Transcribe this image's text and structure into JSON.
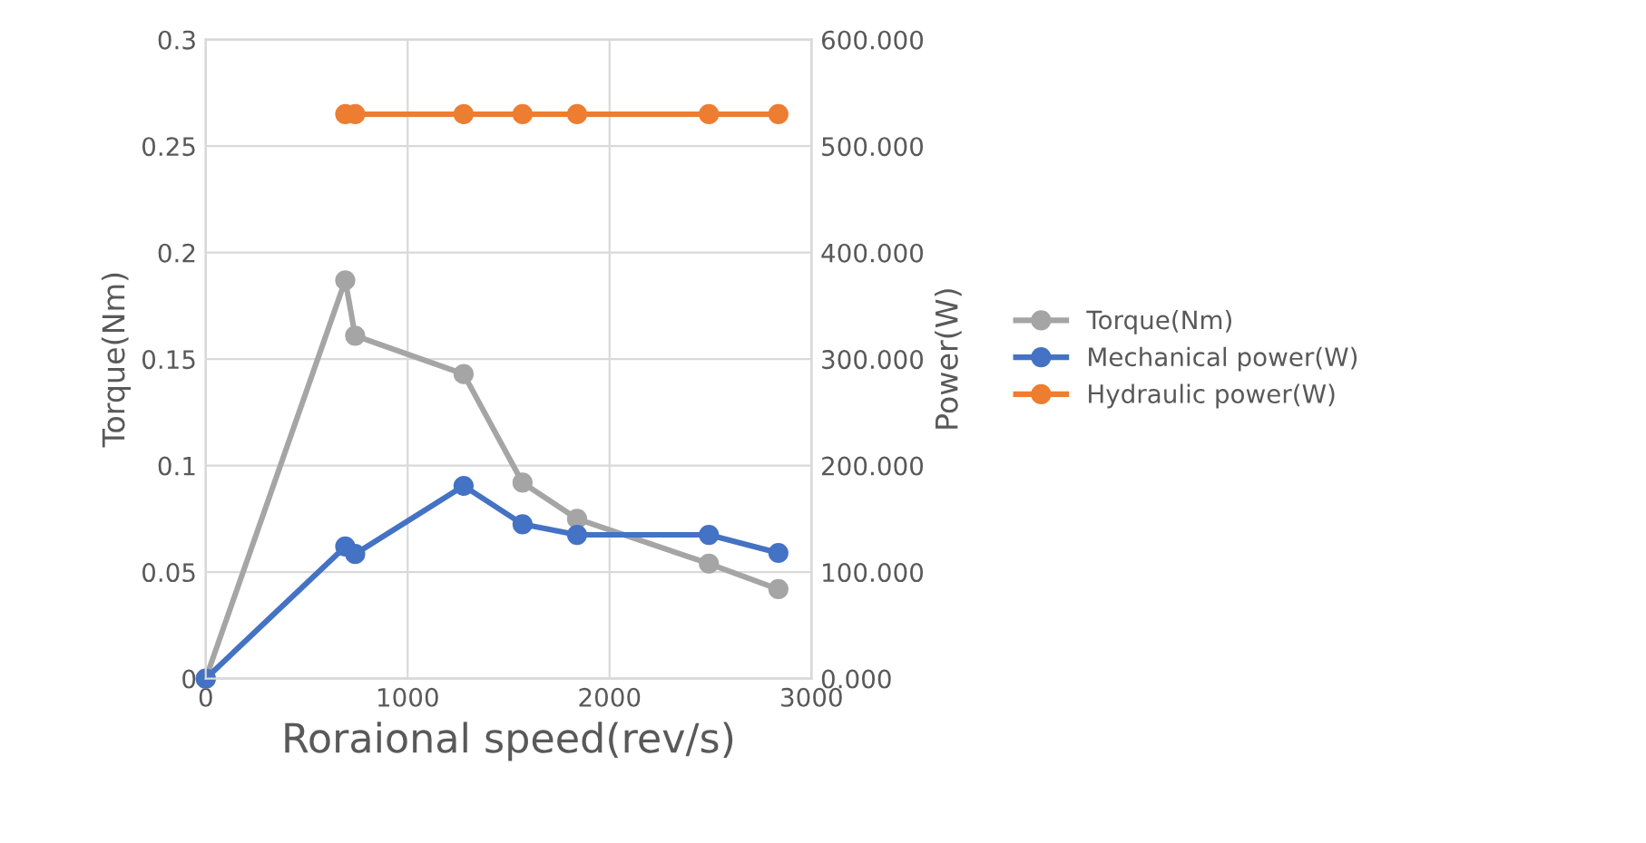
{
  "chart_data": {
    "type": "line",
    "xlabel": "Roraional speed(rev/s)",
    "ylabel": "Torque(Nm)",
    "y2label": "Power(W)",
    "xlim": [
      0,
      3000
    ],
    "xticks": [
      0,
      1000,
      2000,
      3000
    ],
    "ylim": [
      0,
      0.3
    ],
    "yticks": [
      0,
      0.05,
      0.1,
      0.15,
      0.2,
      0.25,
      0.3
    ],
    "y2lim": [
      0,
      600
    ],
    "y2ticks": [
      {
        "value": 0,
        "label": "0.000"
      },
      {
        "value": 100,
        "label": "100.000"
      },
      {
        "value": 200,
        "label": "200.000"
      },
      {
        "value": 300,
        "label": "300.000"
      },
      {
        "value": 400,
        "label": "400.000"
      },
      {
        "value": 500,
        "label": "500.000"
      },
      {
        "value": 600,
        "label": "600.000"
      }
    ],
    "grid": true,
    "legend": "right",
    "marker": "circle",
    "line_style": "solid",
    "series": [
      {
        "name": "Torque(Nm)",
        "color": "#a5a5a5",
        "x": [
          0,
          691,
          740,
          1277,
          1569,
          1839,
          2492,
          2836
        ],
        "values": [
          0,
          0.187,
          0.161,
          0.143,
          0.092,
          0.075,
          0.054,
          0.042
        ]
      },
      {
        "name": "Mechanical power(W)",
        "color": "#4472c4",
        "axis": "y2",
        "x": [
          0,
          691,
          740,
          1277,
          1569,
          1839,
          2492,
          2836
        ],
        "values": [
          0,
          124,
          117,
          181,
          145,
          135,
          135,
          118
        ]
      },
      {
        "name": "Hydraulic power(W)",
        "color": "#ed7d31",
        "axis": "y2",
        "x": [
          691,
          740,
          1277,
          1569,
          1839,
          2492,
          2836
        ],
        "values": [
          530,
          530,
          530,
          530,
          530,
          530,
          530
        ]
      }
    ]
  }
}
